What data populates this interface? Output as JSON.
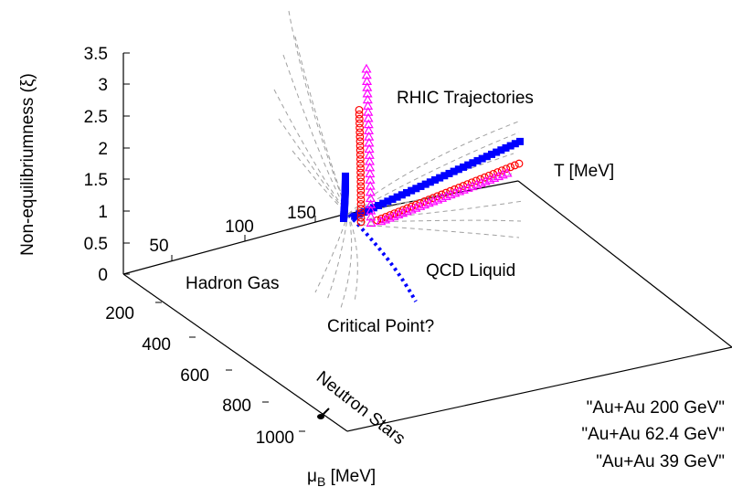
{
  "chart_data": {
    "type": "scatter",
    "projection": "3d",
    "axes": {
      "z": {
        "label": "Non-equilibriumness (ξ)",
        "range": [
          0,
          3.5
        ],
        "ticks": [
          "0",
          "0.5",
          "1",
          "1.5",
          "2",
          "2.5",
          "3",
          "3.5"
        ]
      },
      "t": {
        "label": "T [MeV]",
        "ticks": [
          "50",
          "100",
          "150"
        ]
      },
      "mu": {
        "label_main": "μ",
        "label_sub": "B",
        "label_unit": " [MeV]",
        "ticks": [
          "200",
          "400",
          "600",
          "800",
          "1000"
        ]
      }
    },
    "annotations": {
      "trajectories": "RHIC Trajectories",
      "hadron_gas": "Hadron Gas",
      "qcd_liquid": "QCD Liquid",
      "critical_point": "Critical Point?",
      "neutron_stars": "Neutron Stars"
    },
    "series": [
      {
        "name": "\"Au+Au 200 GeV\"",
        "color": "#0000ff",
        "marker": "filled-square",
        "peak": 1.55,
        "end": 2.1
      },
      {
        "name": "\"Au+Au 62.4 GeV\"",
        "color": "#ff0000",
        "marker": "open-circle",
        "peak": 2.6,
        "end": 1.75
      },
      {
        "name": "\"Au+Au 39 GeV\"",
        "color": "#ff00ff",
        "marker": "open-triangle",
        "peak": 3.25,
        "end": 1.6
      }
    ],
    "grid": false,
    "legend_position": "bottom-right"
  }
}
